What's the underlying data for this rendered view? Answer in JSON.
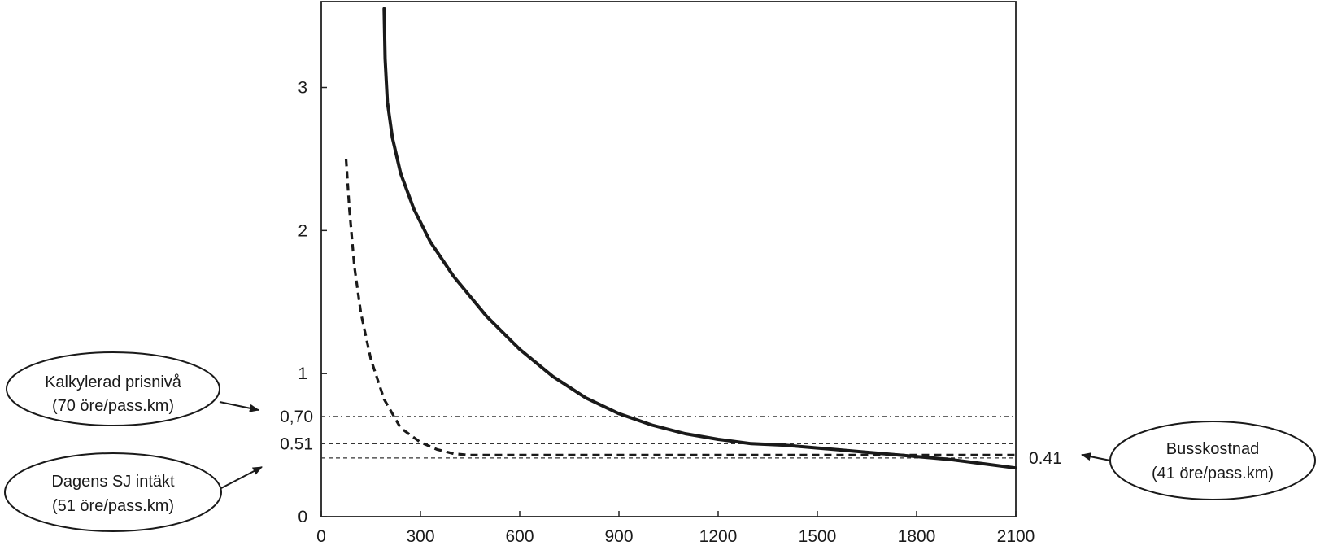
{
  "chart_data": {
    "type": "line",
    "title": "",
    "xlabel": "",
    "ylabel": "",
    "xlim": [
      0,
      2100
    ],
    "ylim": [
      0,
      3.6
    ],
    "grid": false,
    "x_ticks": [
      "0",
      "300",
      "600",
      "900",
      "1200",
      "1500",
      "1800",
      "2100"
    ],
    "y_ticks": [
      {
        "value": 0,
        "label": "0"
      },
      {
        "value": 1,
        "label": "1"
      },
      {
        "value": 2,
        "label": "2"
      },
      {
        "value": 3,
        "label": "3"
      }
    ],
    "series": [
      {
        "style": "solid",
        "x": [
          190,
          193,
          200,
          215,
          240,
          280,
          330,
          400,
          500,
          600,
          700,
          800,
          900,
          1000,
          1100,
          1200,
          1300,
          1400,
          1500,
          1600,
          1700,
          1800,
          1900,
          2000,
          2100
        ],
        "y": [
          3.55,
          3.2,
          2.9,
          2.65,
          2.4,
          2.15,
          1.92,
          1.68,
          1.4,
          1.17,
          0.98,
          0.83,
          0.72,
          0.64,
          0.58,
          0.54,
          0.51,
          0.5,
          0.48,
          0.46,
          0.44,
          0.42,
          0.4,
          0.37,
          0.34
        ]
      },
      {
        "style": "dashed",
        "x": [
          75,
          85,
          100,
          120,
          150,
          190,
          240,
          300,
          350,
          400,
          450,
          600,
          900,
          1200,
          1500,
          1800,
          2100
        ],
        "y": [
          2.5,
          2.15,
          1.75,
          1.42,
          1.1,
          0.82,
          0.62,
          0.52,
          0.47,
          0.44,
          0.43,
          0.43,
          0.43,
          0.43,
          0.43,
          0.43,
          0.43
        ]
      }
    ],
    "reference_lines": [
      {
        "value": 0.7,
        "label": "0,70"
      },
      {
        "value": 0.51,
        "label": "0.51"
      },
      {
        "value": 0.41,
        "label": "0.41"
      }
    ],
    "annotations": [
      {
        "line1": "Kalkylerad prisnivå",
        "line2": "(70 öre/pass.km)",
        "points_to": "0,70"
      },
      {
        "line1": "Dagens SJ intäkt",
        "line2": "(51 öre/pass.km)",
        "points_to": "0.51"
      },
      {
        "line1": "Busskostnad",
        "line2": "(41 öre/pass.km)",
        "points_to": "0.41"
      }
    ]
  }
}
